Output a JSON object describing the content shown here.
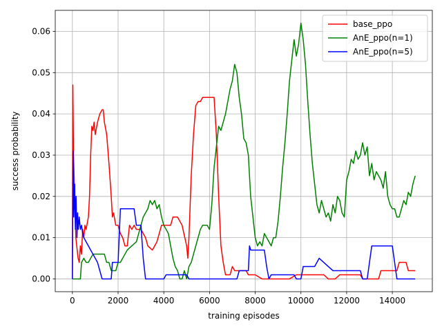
{
  "chart_data": {
    "type": "line",
    "xlabel": "training episodes",
    "ylabel": "success probability",
    "xlim": [
      -750,
      15750
    ],
    "ylim": [
      -0.0031,
      0.0651
    ],
    "xticks": [
      0,
      2000,
      4000,
      6000,
      8000,
      10000,
      12000,
      14000
    ],
    "xtick_labels": [
      "0",
      "2000",
      "4000",
      "6000",
      "8000",
      "10000",
      "12000",
      "14000"
    ],
    "yticks": [
      0.0,
      0.01,
      0.02,
      0.03,
      0.04,
      0.05,
      0.06
    ],
    "ytick_labels": [
      "0.00",
      "0.01",
      "0.02",
      "0.03",
      "0.04",
      "0.05",
      "0.06"
    ],
    "grid": true,
    "legend_position": "top-right",
    "series": [
      {
        "name": "base_ppo",
        "color": "#ff0000",
        "points": [
          [
            0,
            0
          ],
          [
            20,
            0.047
          ],
          [
            50,
            0.03
          ],
          [
            100,
            0.02
          ],
          [
            150,
            0.01
          ],
          [
            250,
            0.005
          ],
          [
            300,
            0.004
          ],
          [
            350,
            0.008
          ],
          [
            400,
            0.006
          ],
          [
            450,
            0.012
          ],
          [
            500,
            0.01
          ],
          [
            550,
            0.013
          ],
          [
            600,
            0.012
          ],
          [
            700,
            0.015
          ],
          [
            750,
            0.02
          ],
          [
            800,
            0.03
          ],
          [
            850,
            0.037
          ],
          [
            900,
            0.036
          ],
          [
            950,
            0.038
          ],
          [
            1000,
            0.035
          ],
          [
            1100,
            0.038
          ],
          [
            1200,
            0.04
          ],
          [
            1300,
            0.041
          ],
          [
            1350,
            0.041
          ],
          [
            1400,
            0.038
          ],
          [
            1500,
            0.035
          ],
          [
            1600,
            0.028
          ],
          [
            1700,
            0.02
          ],
          [
            1750,
            0.015
          ],
          [
            1800,
            0.016
          ],
          [
            1900,
            0.013
          ],
          [
            2000,
            0.013
          ],
          [
            2100,
            0.011
          ],
          [
            2200,
            0.01
          ],
          [
            2300,
            0.008
          ],
          [
            2400,
            0.008
          ],
          [
            2500,
            0.013
          ],
          [
            2600,
            0.012
          ],
          [
            2700,
            0.013
          ],
          [
            2800,
            0.012
          ],
          [
            3000,
            0.012
          ],
          [
            3100,
            0.011
          ],
          [
            3200,
            0.01
          ],
          [
            3300,
            0.008
          ],
          [
            3500,
            0.007
          ],
          [
            3700,
            0.009
          ],
          [
            3900,
            0.013
          ],
          [
            4000,
            0.013
          ],
          [
            4100,
            0.013
          ],
          [
            4300,
            0.013
          ],
          [
            4400,
            0.015
          ],
          [
            4600,
            0.015
          ],
          [
            4800,
            0.013
          ],
          [
            5000,
            0.008
          ],
          [
            5050,
            0.005
          ],
          [
            5100,
            0.01
          ],
          [
            5200,
            0.025
          ],
          [
            5300,
            0.035
          ],
          [
            5400,
            0.042
          ],
          [
            5500,
            0.043
          ],
          [
            5600,
            0.043
          ],
          [
            5700,
            0.044
          ],
          [
            6200,
            0.044
          ],
          [
            6300,
            0.035
          ],
          [
            6400,
            0.02
          ],
          [
            6500,
            0.008
          ],
          [
            6600,
            0.004
          ],
          [
            6700,
            0.001
          ],
          [
            6900,
            0.001
          ],
          [
            7000,
            0.003
          ],
          [
            7100,
            0.002
          ],
          [
            7400,
            0.002
          ],
          [
            7600,
            0.002
          ],
          [
            7700,
            0.001
          ],
          [
            8000,
            0.001
          ],
          [
            8300,
            0
          ],
          [
            9500,
            0
          ],
          [
            9800,
            0.001
          ],
          [
            11000,
            0.001
          ],
          [
            11200,
            0
          ],
          [
            11500,
            0
          ],
          [
            11700,
            0.001
          ],
          [
            12600,
            0.001
          ],
          [
            12700,
            0
          ],
          [
            13400,
            0
          ],
          [
            13500,
            0.002
          ],
          [
            14200,
            0.002
          ],
          [
            14300,
            0.004
          ],
          [
            14600,
            0.004
          ],
          [
            14700,
            0.002
          ],
          [
            15000,
            0.002
          ]
        ]
      },
      {
        "name": "AnE_ppo(n=1)",
        "color": "#008000",
        "points": [
          [
            0,
            0
          ],
          [
            350,
            0
          ],
          [
            400,
            0.004
          ],
          [
            500,
            0.005
          ],
          [
            600,
            0.004
          ],
          [
            700,
            0.004
          ],
          [
            800,
            0.005
          ],
          [
            900,
            0.006
          ],
          [
            1000,
            0.006
          ],
          [
            1400,
            0.006
          ],
          [
            1500,
            0.004
          ],
          [
            1600,
            0.004
          ],
          [
            1700,
            0.002
          ],
          [
            1900,
            0.002
          ],
          [
            2000,
            0.004
          ],
          [
            2100,
            0.004
          ],
          [
            2200,
            0.005
          ],
          [
            2300,
            0.006
          ],
          [
            2400,
            0.007
          ],
          [
            2600,
            0.008
          ],
          [
            2800,
            0.009
          ],
          [
            2900,
            0.011
          ],
          [
            3000,
            0.013
          ],
          [
            3100,
            0.015
          ],
          [
            3200,
            0.016
          ],
          [
            3300,
            0.017
          ],
          [
            3400,
            0.019
          ],
          [
            3500,
            0.018
          ],
          [
            3600,
            0.019
          ],
          [
            3700,
            0.017
          ],
          [
            3800,
            0.018
          ],
          [
            3900,
            0.015
          ],
          [
            4000,
            0.013
          ],
          [
            4100,
            0.012
          ],
          [
            4200,
            0.011
          ],
          [
            4300,
            0.008
          ],
          [
            4400,
            0.005
          ],
          [
            4500,
            0.003
          ],
          [
            4600,
            0.002
          ],
          [
            4700,
            0
          ],
          [
            4800,
            0
          ],
          [
            4900,
            0.002
          ],
          [
            5000,
            0
          ],
          [
            5100,
            0.003
          ],
          [
            5200,
            0.004
          ],
          [
            5300,
            0.006
          ],
          [
            5500,
            0.01
          ],
          [
            5600,
            0.012
          ],
          [
            5700,
            0.013
          ],
          [
            5900,
            0.013
          ],
          [
            6000,
            0.012
          ],
          [
            6100,
            0.018
          ],
          [
            6200,
            0.027
          ],
          [
            6300,
            0.032
          ],
          [
            6400,
            0.037
          ],
          [
            6500,
            0.036
          ],
          [
            6600,
            0.038
          ],
          [
            6700,
            0.04
          ],
          [
            6800,
            0.043
          ],
          [
            6900,
            0.046
          ],
          [
            7000,
            0.048
          ],
          [
            7100,
            0.052
          ],
          [
            7200,
            0.05
          ],
          [
            7300,
            0.044
          ],
          [
            7400,
            0.04
          ],
          [
            7500,
            0.034
          ],
          [
            7600,
            0.033
          ],
          [
            7700,
            0.03
          ],
          [
            7800,
            0.02
          ],
          [
            7900,
            0.015
          ],
          [
            8000,
            0.01
          ],
          [
            8100,
            0.008
          ],
          [
            8200,
            0.009
          ],
          [
            8300,
            0.008
          ],
          [
            8400,
            0.011
          ],
          [
            8500,
            0.01
          ],
          [
            8600,
            0.009
          ],
          [
            8700,
            0.008
          ],
          [
            8800,
            0.01
          ],
          [
            8900,
            0.01
          ],
          [
            9000,
            0.014
          ],
          [
            9100,
            0.02
          ],
          [
            9200,
            0.027
          ],
          [
            9300,
            0.033
          ],
          [
            9400,
            0.04
          ],
          [
            9500,
            0.048
          ],
          [
            9600,
            0.053
          ],
          [
            9700,
            0.058
          ],
          [
            9800,
            0.054
          ],
          [
            9900,
            0.057
          ],
          [
            10000,
            0.062
          ],
          [
            10100,
            0.058
          ],
          [
            10200,
            0.052
          ],
          [
            10300,
            0.043
          ],
          [
            10400,
            0.035
          ],
          [
            10500,
            0.028
          ],
          [
            10600,
            0.023
          ],
          [
            10700,
            0.018
          ],
          [
            10800,
            0.016
          ],
          [
            10900,
            0.019
          ],
          [
            11000,
            0.017
          ],
          [
            11100,
            0.015
          ],
          [
            11200,
            0.016
          ],
          [
            11300,
            0.014
          ],
          [
            11400,
            0.018
          ],
          [
            11500,
            0.016
          ],
          [
            11600,
            0.02
          ],
          [
            11700,
            0.019
          ],
          [
            11800,
            0.016
          ],
          [
            11900,
            0.015
          ],
          [
            12000,
            0.024
          ],
          [
            12100,
            0.026
          ],
          [
            12200,
            0.029
          ],
          [
            12300,
            0.028
          ],
          [
            12400,
            0.031
          ],
          [
            12500,
            0.029
          ],
          [
            12600,
            0.03
          ],
          [
            12700,
            0.033
          ],
          [
            12800,
            0.03
          ],
          [
            12900,
            0.032
          ],
          [
            13000,
            0.025
          ],
          [
            13100,
            0.028
          ],
          [
            13200,
            0.024
          ],
          [
            13300,
            0.026
          ],
          [
            13400,
            0.025
          ],
          [
            13500,
            0.024
          ],
          [
            13600,
            0.022
          ],
          [
            13700,
            0.026
          ],
          [
            13800,
            0.02
          ],
          [
            13900,
            0.018
          ],
          [
            14000,
            0.017
          ],
          [
            14100,
            0.017
          ],
          [
            14200,
            0.015
          ],
          [
            14300,
            0.015
          ],
          [
            14400,
            0.017
          ],
          [
            14500,
            0.019
          ],
          [
            14600,
            0.018
          ],
          [
            14700,
            0.021
          ],
          [
            14800,
            0.02
          ],
          [
            14900,
            0.023
          ],
          [
            15000,
            0.025
          ]
        ]
      },
      {
        "name": "AnE_ppo(n=5)",
        "color": "#0000ff",
        "points": [
          [
            0,
            0
          ],
          [
            30,
            0.031
          ],
          [
            60,
            0.015
          ],
          [
            100,
            0.023
          ],
          [
            130,
            0.012
          ],
          [
            160,
            0.02
          ],
          [
            200,
            0.01
          ],
          [
            230,
            0.016
          ],
          [
            260,
            0.012
          ],
          [
            300,
            0.015
          ],
          [
            350,
            0.012
          ],
          [
            400,
            0.013
          ],
          [
            450,
            0.011
          ],
          [
            500,
            0.01
          ],
          [
            600,
            0.009
          ],
          [
            700,
            0.008
          ],
          [
            800,
            0.007
          ],
          [
            900,
            0.006
          ],
          [
            1000,
            0.005
          ],
          [
            1100,
            0.004
          ],
          [
            1200,
            0.002
          ],
          [
            1300,
            0
          ],
          [
            1700,
            0
          ],
          [
            1750,
            0.004
          ],
          [
            2000,
            0.004
          ],
          [
            2100,
            0.017
          ],
          [
            2700,
            0.017
          ],
          [
            2800,
            0.013
          ],
          [
            3000,
            0.013
          ],
          [
            3100,
            0.005
          ],
          [
            3200,
            0
          ],
          [
            4000,
            0
          ],
          [
            4100,
            0.001
          ],
          [
            5000,
            0.001
          ],
          [
            5100,
            0
          ],
          [
            7200,
            0
          ],
          [
            7300,
            0.002
          ],
          [
            7700,
            0.002
          ],
          [
            7750,
            0.008
          ],
          [
            7800,
            0.007
          ],
          [
            8400,
            0.007
          ],
          [
            8500,
            0.003
          ],
          [
            8600,
            0
          ],
          [
            8700,
            0.001
          ],
          [
            9700,
            0.001
          ],
          [
            9800,
            0
          ],
          [
            10000,
            0
          ],
          [
            10100,
            0.003
          ],
          [
            10600,
            0.003
          ],
          [
            10700,
            0.004
          ],
          [
            10800,
            0.005
          ],
          [
            11000,
            0.004
          ],
          [
            11200,
            0.003
          ],
          [
            11400,
            0.002
          ],
          [
            11800,
            0.002
          ],
          [
            12000,
            0.002
          ],
          [
            12600,
            0.002
          ],
          [
            12700,
            0
          ],
          [
            12900,
            0
          ],
          [
            13000,
            0.004
          ],
          [
            13100,
            0.008
          ],
          [
            14000,
            0.008
          ],
          [
            14100,
            0.004
          ],
          [
            14200,
            0
          ],
          [
            15000,
            0
          ]
        ]
      }
    ]
  }
}
